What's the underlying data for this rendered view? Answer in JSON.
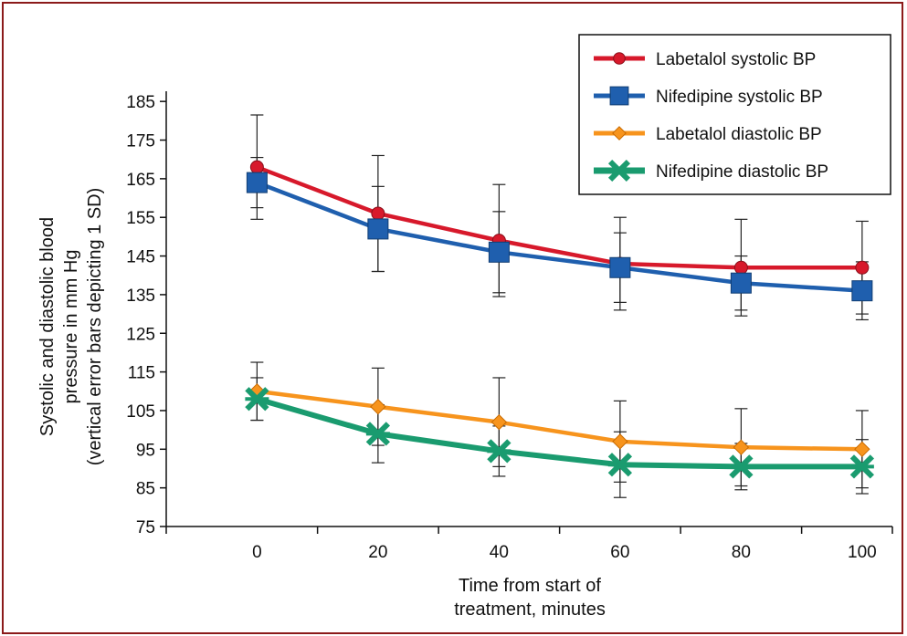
{
  "chart_data": {
    "type": "line",
    "x": [
      0,
      20,
      40,
      60,
      80,
      100
    ],
    "xlabel": [
      "Time from start of",
      "treatment, minutes"
    ],
    "ylabel": [
      "Systolic and diastolic blood",
      "pressure in mm Hg",
      "(vertical error bars depicting 1 SD)"
    ],
    "xlim": [
      -15,
      105
    ],
    "ylim": [
      75,
      190
    ],
    "yticks": [
      75,
      85,
      95,
      105,
      115,
      125,
      135,
      145,
      155,
      165,
      175,
      185
    ],
    "xticks": [
      0,
      20,
      40,
      60,
      80,
      100
    ],
    "grid": false,
    "legend_position": "top-right",
    "series": [
      {
        "name": "Labetalol systolic BP",
        "color": "#d7192b",
        "marker": "circle",
        "values": [
          168,
          156,
          149,
          143,
          142,
          142
        ],
        "sd": [
          13.5,
          15,
          14.5,
          12,
          12.5,
          12
        ]
      },
      {
        "name": "Nifedipine systolic BP",
        "color": "#1f5fae",
        "marker": "square",
        "values": [
          164,
          152,
          146,
          142,
          138,
          136
        ],
        "sd": [
          6.5,
          11,
          10.5,
          9,
          7,
          7.5
        ]
      },
      {
        "name": "Labetalol diastolic BP",
        "color": "#f7941d",
        "marker": "diamond",
        "values": [
          110,
          106,
          102,
          97,
          95.5,
          95
        ],
        "sd": [
          7.5,
          10,
          11.5,
          10.5,
          10,
          10
        ]
      },
      {
        "name": "Nifedipine diastolic BP",
        "color": "#1a9b6f",
        "marker": "star",
        "values": [
          108,
          99,
          94.5,
          91,
          90.5,
          90.5
        ],
        "sd": [
          5.5,
          7.5,
          6.5,
          8.5,
          6,
          7
        ]
      }
    ]
  }
}
